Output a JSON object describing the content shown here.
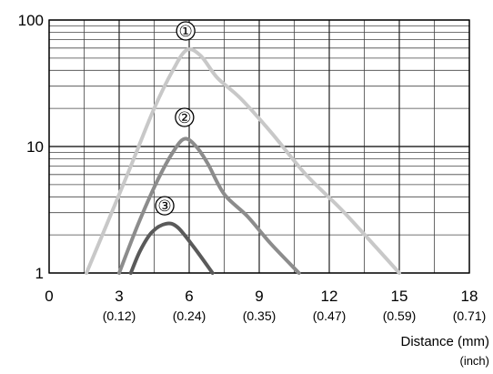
{
  "chart_data": {
    "type": "line",
    "xlabel": "Distance (mm)",
    "xlabel_unit": "(inch)",
    "y_scale": "log",
    "xlim": [
      0,
      18
    ],
    "ylim": [
      1,
      100
    ],
    "grid": true,
    "x_ticks": [
      {
        "value": 0,
        "label": "0",
        "sub": ""
      },
      {
        "value": 3,
        "label": "3",
        "sub": "(0.12)"
      },
      {
        "value": 6,
        "label": "6",
        "sub": "(0.24)"
      },
      {
        "value": 9,
        "label": "9",
        "sub": "(0.35)"
      },
      {
        "value": 12,
        "label": "12",
        "sub": "(0.47)"
      },
      {
        "value": 15,
        "label": "15",
        "sub": "(0.59)"
      },
      {
        "value": 18,
        "label": "18",
        "sub": "(0.71)"
      }
    ],
    "y_ticks": [
      {
        "value": 1,
        "label": "1"
      },
      {
        "value": 10,
        "label": "10"
      },
      {
        "value": 100,
        "label": "100"
      }
    ],
    "series": [
      {
        "label": "①",
        "color": "#c8c8c8",
        "label_at": [
          5.85,
          82
        ],
        "points": [
          [
            1.6,
            1.0
          ],
          [
            2.5,
            2.5
          ],
          [
            3.5,
            7
          ],
          [
            4.5,
            20
          ],
          [
            5.3,
            40
          ],
          [
            5.9,
            58
          ],
          [
            6.5,
            52
          ],
          [
            7.2,
            35
          ],
          [
            8.2,
            24
          ],
          [
            9.5,
            13
          ],
          [
            11.0,
            6
          ],
          [
            12.5,
            3.2
          ],
          [
            14.0,
            1.6
          ],
          [
            15.0,
            1.0
          ]
        ]
      },
      {
        "label": "②",
        "color": "#8c8c8c",
        "label_at": [
          5.8,
          17
        ],
        "points": [
          [
            3.0,
            1.0
          ],
          [
            3.8,
            2.4
          ],
          [
            4.6,
            5.2
          ],
          [
            5.3,
            9
          ],
          [
            5.8,
            11.5
          ],
          [
            6.3,
            10
          ],
          [
            6.8,
            7.3
          ],
          [
            7.5,
            4.2
          ],
          [
            8.5,
            2.8
          ],
          [
            9.5,
            1.7
          ],
          [
            10.7,
            1.0
          ]
        ]
      },
      {
        "label": "③",
        "color": "#5a5a5a",
        "label_at": [
          4.95,
          3.4
        ],
        "points": [
          [
            3.5,
            1.0
          ],
          [
            3.9,
            1.5
          ],
          [
            4.4,
            2.1
          ],
          [
            5.0,
            2.45
          ],
          [
            5.5,
            2.3
          ],
          [
            6.2,
            1.6
          ],
          [
            7.0,
            1.0
          ]
        ]
      }
    ]
  }
}
